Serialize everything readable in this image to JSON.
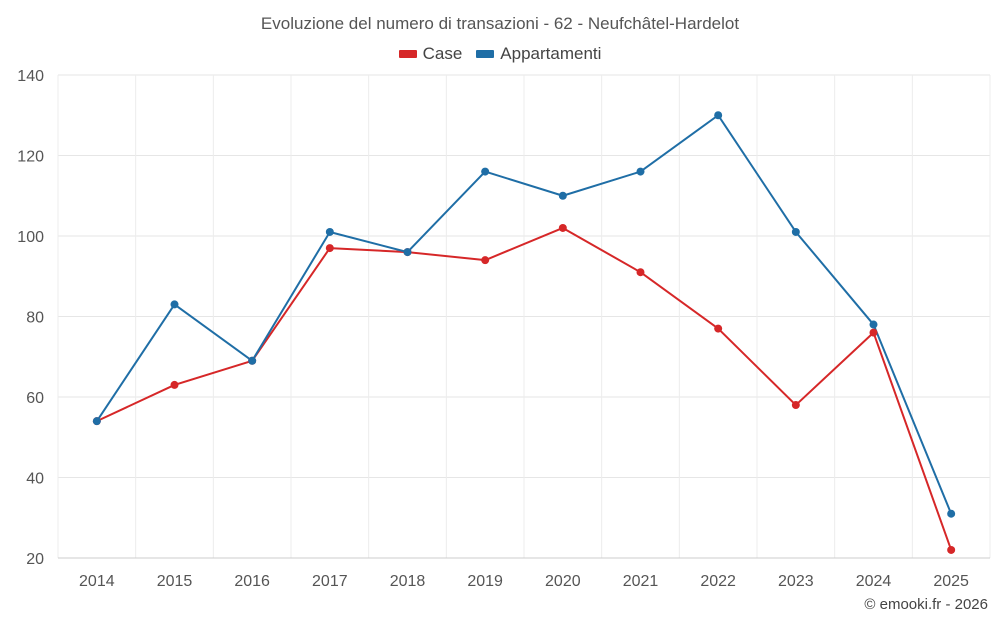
{
  "chart_data": {
    "type": "line",
    "title": "Evoluzione del numero di transazioni - 62 - Neufchâtel-Hardelot",
    "categories": [
      "2014",
      "2015",
      "2016",
      "2017",
      "2018",
      "2019",
      "2020",
      "2021",
      "2022",
      "2023",
      "2024",
      "2025"
    ],
    "series": [
      {
        "name": "Case",
        "color": "#d62728",
        "values": [
          54,
          63,
          69,
          97,
          96,
          94,
          102,
          91,
          77,
          58,
          76,
          22
        ]
      },
      {
        "name": "Appartamenti",
        "color": "#1f6ea6",
        "values": [
          54,
          83,
          69,
          101,
          96,
          116,
          110,
          116,
          130,
          101,
          78,
          31
        ]
      }
    ],
    "xlabel": "",
    "ylabel": "",
    "ylim": [
      20,
      140
    ],
    "yticks": [
      20,
      40,
      60,
      80,
      100,
      120,
      140
    ],
    "grid": true,
    "legend_position": "top-center"
  },
  "credit": "© emooki.fr - 2026"
}
